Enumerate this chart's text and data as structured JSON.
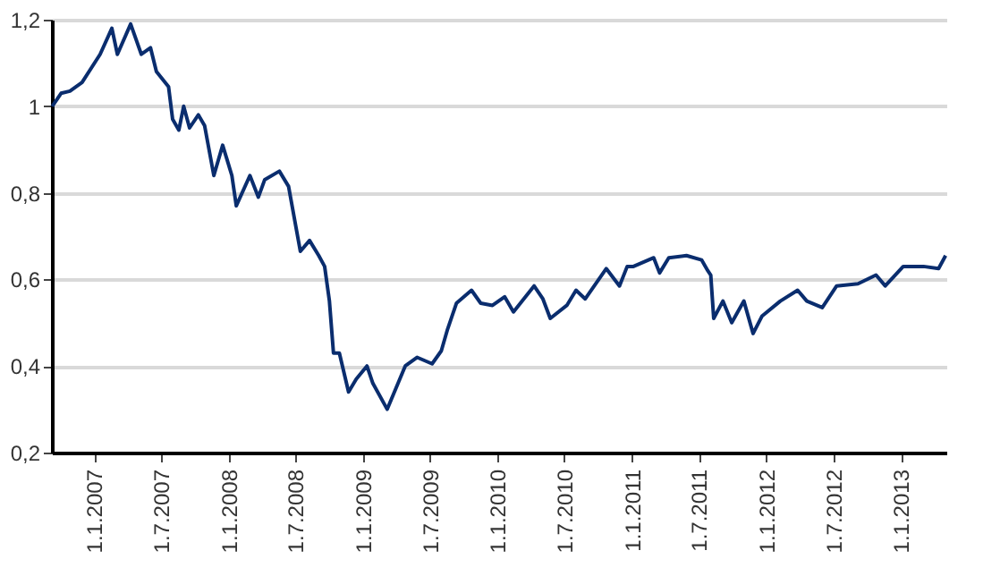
{
  "chart_data": {
    "type": "line",
    "xlim": [
      "2006-09-08",
      "2013-05-04"
    ],
    "ylim": [
      0.2,
      1.2
    ],
    "yticks": [
      {
        "value": 0.2,
        "label": "0,2"
      },
      {
        "value": 0.4,
        "label": "0,4"
      },
      {
        "value": 0.6,
        "label": "0,6"
      },
      {
        "value": 0.8,
        "label": "0,8"
      },
      {
        "value": 1,
        "label": "1"
      },
      {
        "value": 1.2,
        "label": "1,2"
      }
    ],
    "xticks": [
      {
        "value": "2007-01-01",
        "label": "1.1.2007"
      },
      {
        "value": "2007-07-01",
        "label": "1.7.2007"
      },
      {
        "value": "2008-01-01",
        "label": "1.1.2008"
      },
      {
        "value": "2008-07-01",
        "label": "1.7.2008"
      },
      {
        "value": "2009-01-01",
        "label": "1.1.2009"
      },
      {
        "value": "2009-07-01",
        "label": "1.7.2009"
      },
      {
        "value": "2010-01-01",
        "label": "1.1.2010"
      },
      {
        "value": "2010-07-01",
        "label": "1.7.2010"
      },
      {
        "value": "2011-01-01",
        "label": "1.1.2011"
      },
      {
        "value": "2011-07-01",
        "label": "1.7.2011"
      },
      {
        "value": "2012-01-01",
        "label": "1.1.2012"
      },
      {
        "value": "2012-07-01",
        "label": "1.7.2012"
      },
      {
        "value": "2013-01-01",
        "label": "1.1.2013"
      }
    ],
    "grid": "y",
    "marker": "none",
    "line_style": "solid",
    "series": [
      {
        "color": "#0a2d6e",
        "x": [
          "2006-09-09",
          "2006-10-03",
          "2006-10-27",
          "2006-11-29",
          "2007-01-17",
          "2007-02-18",
          "2007-03-05",
          "2007-04-10",
          "2007-05-09",
          "2007-06-03",
          "2007-06-19",
          "2007-07-22",
          "2007-08-02",
          "2007-08-19",
          "2007-09-01",
          "2007-09-17",
          "2007-10-11",
          "2007-10-28",
          "2007-11-22",
          "2007-12-16",
          "2008-01-10",
          "2008-01-22",
          "2008-02-28",
          "2008-03-22",
          "2008-04-08",
          "2008-05-18",
          "2008-06-12",
          "2008-07-14",
          "2008-08-08",
          "2008-09-02",
          "2008-09-18",
          "2008-10-01",
          "2008-10-12",
          "2008-10-28",
          "2008-11-22",
          "2008-12-13",
          "2009-01-11",
          "2009-01-27",
          "2009-03-07",
          "2009-04-25",
          "2009-05-27",
          "2009-07-07",
          "2009-08-01",
          "2009-08-18",
          "2009-09-11",
          "2009-10-22",
          "2009-11-16",
          "2009-12-18",
          "2010-01-20",
          "2010-02-13",
          "2010-04-10",
          "2010-05-04",
          "2010-05-24",
          "2010-07-08",
          "2010-08-02",
          "2010-08-27",
          "2010-10-23",
          "2010-11-28",
          "2010-12-19",
          "2011-01-05",
          "2011-03-01",
          "2011-03-17",
          "2011-04-11",
          "2011-05-29",
          "2011-07-09",
          "2011-07-26",
          "2011-08-03",
          "2011-08-11",
          "2011-09-05",
          "2011-09-29",
          "2011-11-01",
          "2011-11-26",
          "2011-12-20",
          "2012-02-08",
          "2012-03-26",
          "2012-04-20",
          "2012-06-01",
          "2012-07-10",
          "2012-09-06",
          "2012-10-25",
          "2012-11-19",
          "2013-01-07",
          "2013-03-03",
          "2013-04-13",
          "2013-05-02"
        ],
        "values": [
          1.0,
          1.03,
          1.035,
          1.055,
          1.12,
          1.18,
          1.12,
          1.19,
          1.12,
          1.135,
          1.08,
          1.045,
          0.97,
          0.945,
          1.0,
          0.95,
          0.98,
          0.955,
          0.84,
          0.91,
          0.84,
          0.77,
          0.84,
          0.79,
          0.83,
          0.85,
          0.815,
          0.665,
          0.69,
          0.655,
          0.63,
          0.55,
          0.43,
          0.43,
          0.34,
          0.37,
          0.4,
          0.36,
          0.3,
          0.4,
          0.42,
          0.405,
          0.435,
          0.485,
          0.545,
          0.575,
          0.545,
          0.54,
          0.56,
          0.525,
          0.585,
          0.555,
          0.51,
          0.54,
          0.575,
          0.555,
          0.625,
          0.585,
          0.63,
          0.63,
          0.65,
          0.615,
          0.65,
          0.655,
          0.645,
          0.62,
          0.61,
          0.51,
          0.55,
          0.5,
          0.55,
          0.475,
          0.515,
          0.55,
          0.575,
          0.55,
          0.535,
          0.585,
          0.59,
          0.61,
          0.585,
          0.63,
          0.63,
          0.625,
          0.655
        ]
      }
    ]
  }
}
